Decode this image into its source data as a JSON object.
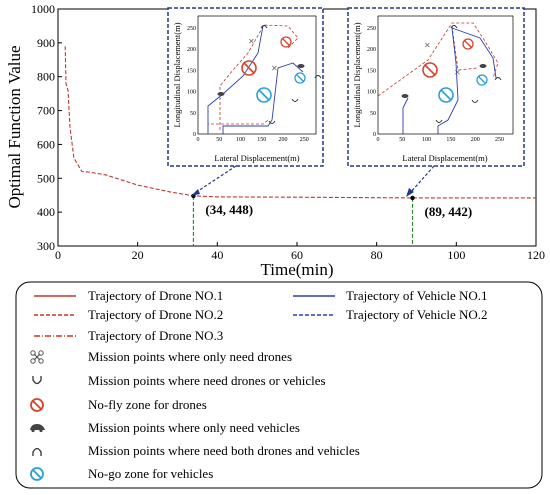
{
  "chart_data": {
    "type": "line",
    "xlabel": "Time(min)",
    "ylabel": "Optimal Function Value",
    "xlim": [
      0,
      120
    ],
    "ylim": [
      300,
      1000
    ],
    "x_ticks": [
      "0",
      "20",
      "40",
      "60",
      "80",
      "100",
      "120"
    ],
    "y_ticks": [
      "300",
      "400",
      "500",
      "600",
      "700",
      "800",
      "900",
      "1000"
    ],
    "series": [
      {
        "name": "",
        "color": "#c0392b",
        "style": "dashed",
        "x": [
          1.8,
          2.0,
          2.5,
          3.0,
          4.0,
          6.0,
          8.0,
          12.0,
          20.0,
          28.0,
          34.0,
          40.0,
          60.0,
          89.0,
          120.0
        ],
        "y": [
          890,
          780,
          760,
          650,
          560,
          520,
          518,
          510,
          480,
          460,
          448,
          445,
          444,
          442,
          442
        ]
      }
    ],
    "reference_lines": [
      {
        "x": 34,
        "y": 448,
        "color": "#2e8b2e",
        "style": "dashed"
      },
      {
        "x": 89,
        "y": 442,
        "color": "#2e8b2e",
        "style": "dashed"
      }
    ],
    "annotations": [
      {
        "text": "(34, 448)",
        "x": 34,
        "y": 448
      },
      {
        "text": "(89, 442)",
        "x": 89,
        "y": 442
      }
    ]
  },
  "insets": [
    {
      "xlabel": "Lateral Displacement(m)",
      "ylabel": "Longitudinal Displacement(m)",
      "x_ticks": [
        "0",
        "50",
        "100",
        "150",
        "200",
        "250"
      ],
      "y_ticks": [
        "0",
        "50",
        "100",
        "150",
        "200",
        "250"
      ]
    },
    {
      "xlabel": "Lateral Displacement(m)",
      "ylabel": "Longitudinal Displacement(m)",
      "x_ticks": [
        "0",
        "50",
        "100",
        "150",
        "200",
        "250"
      ],
      "y_ticks": [
        "0",
        "50",
        "100",
        "150",
        "200",
        "250"
      ]
    }
  ],
  "legend": {
    "items": [
      {
        "label": "Trajectory of Drone NO.1",
        "icon": "solid-red-line",
        "color": "#c0392b"
      },
      {
        "label": "Trajectory of Vehicle NO.1",
        "icon": "solid-blue-line",
        "color": "#2b3fb0"
      },
      {
        "label": "Trajectory of Drone NO.2",
        "icon": "dashed-red-line",
        "color": "#c0392b"
      },
      {
        "label": "Trajectory of Vehicle NO.2",
        "icon": "dashed-blue-line",
        "color": "#2b3fb0"
      },
      {
        "label": "Trajectory of Drone NO.3",
        "icon": "dashdot-red-line",
        "color": "#c0392b"
      },
      {
        "label": "Mission points where only need drones",
        "icon": "drone-icon",
        "color": "#555555"
      },
      {
        "label": "Mission points where need drones or vehicles",
        "icon": "cup-icon",
        "color": "#333333"
      },
      {
        "label": "No-fly zone for drones",
        "icon": "no-fly-icon",
        "color": "#d9412b"
      },
      {
        "label": "Mission points where only need vehicles",
        "icon": "car-icon",
        "color": "#444444"
      },
      {
        "label": "Mission points where need both drones and vehicles",
        "icon": "cap-icon",
        "color": "#333333"
      },
      {
        "label": "No-go zone for vehicles",
        "icon": "no-go-icon",
        "color": "#2a9fd6"
      }
    ]
  }
}
